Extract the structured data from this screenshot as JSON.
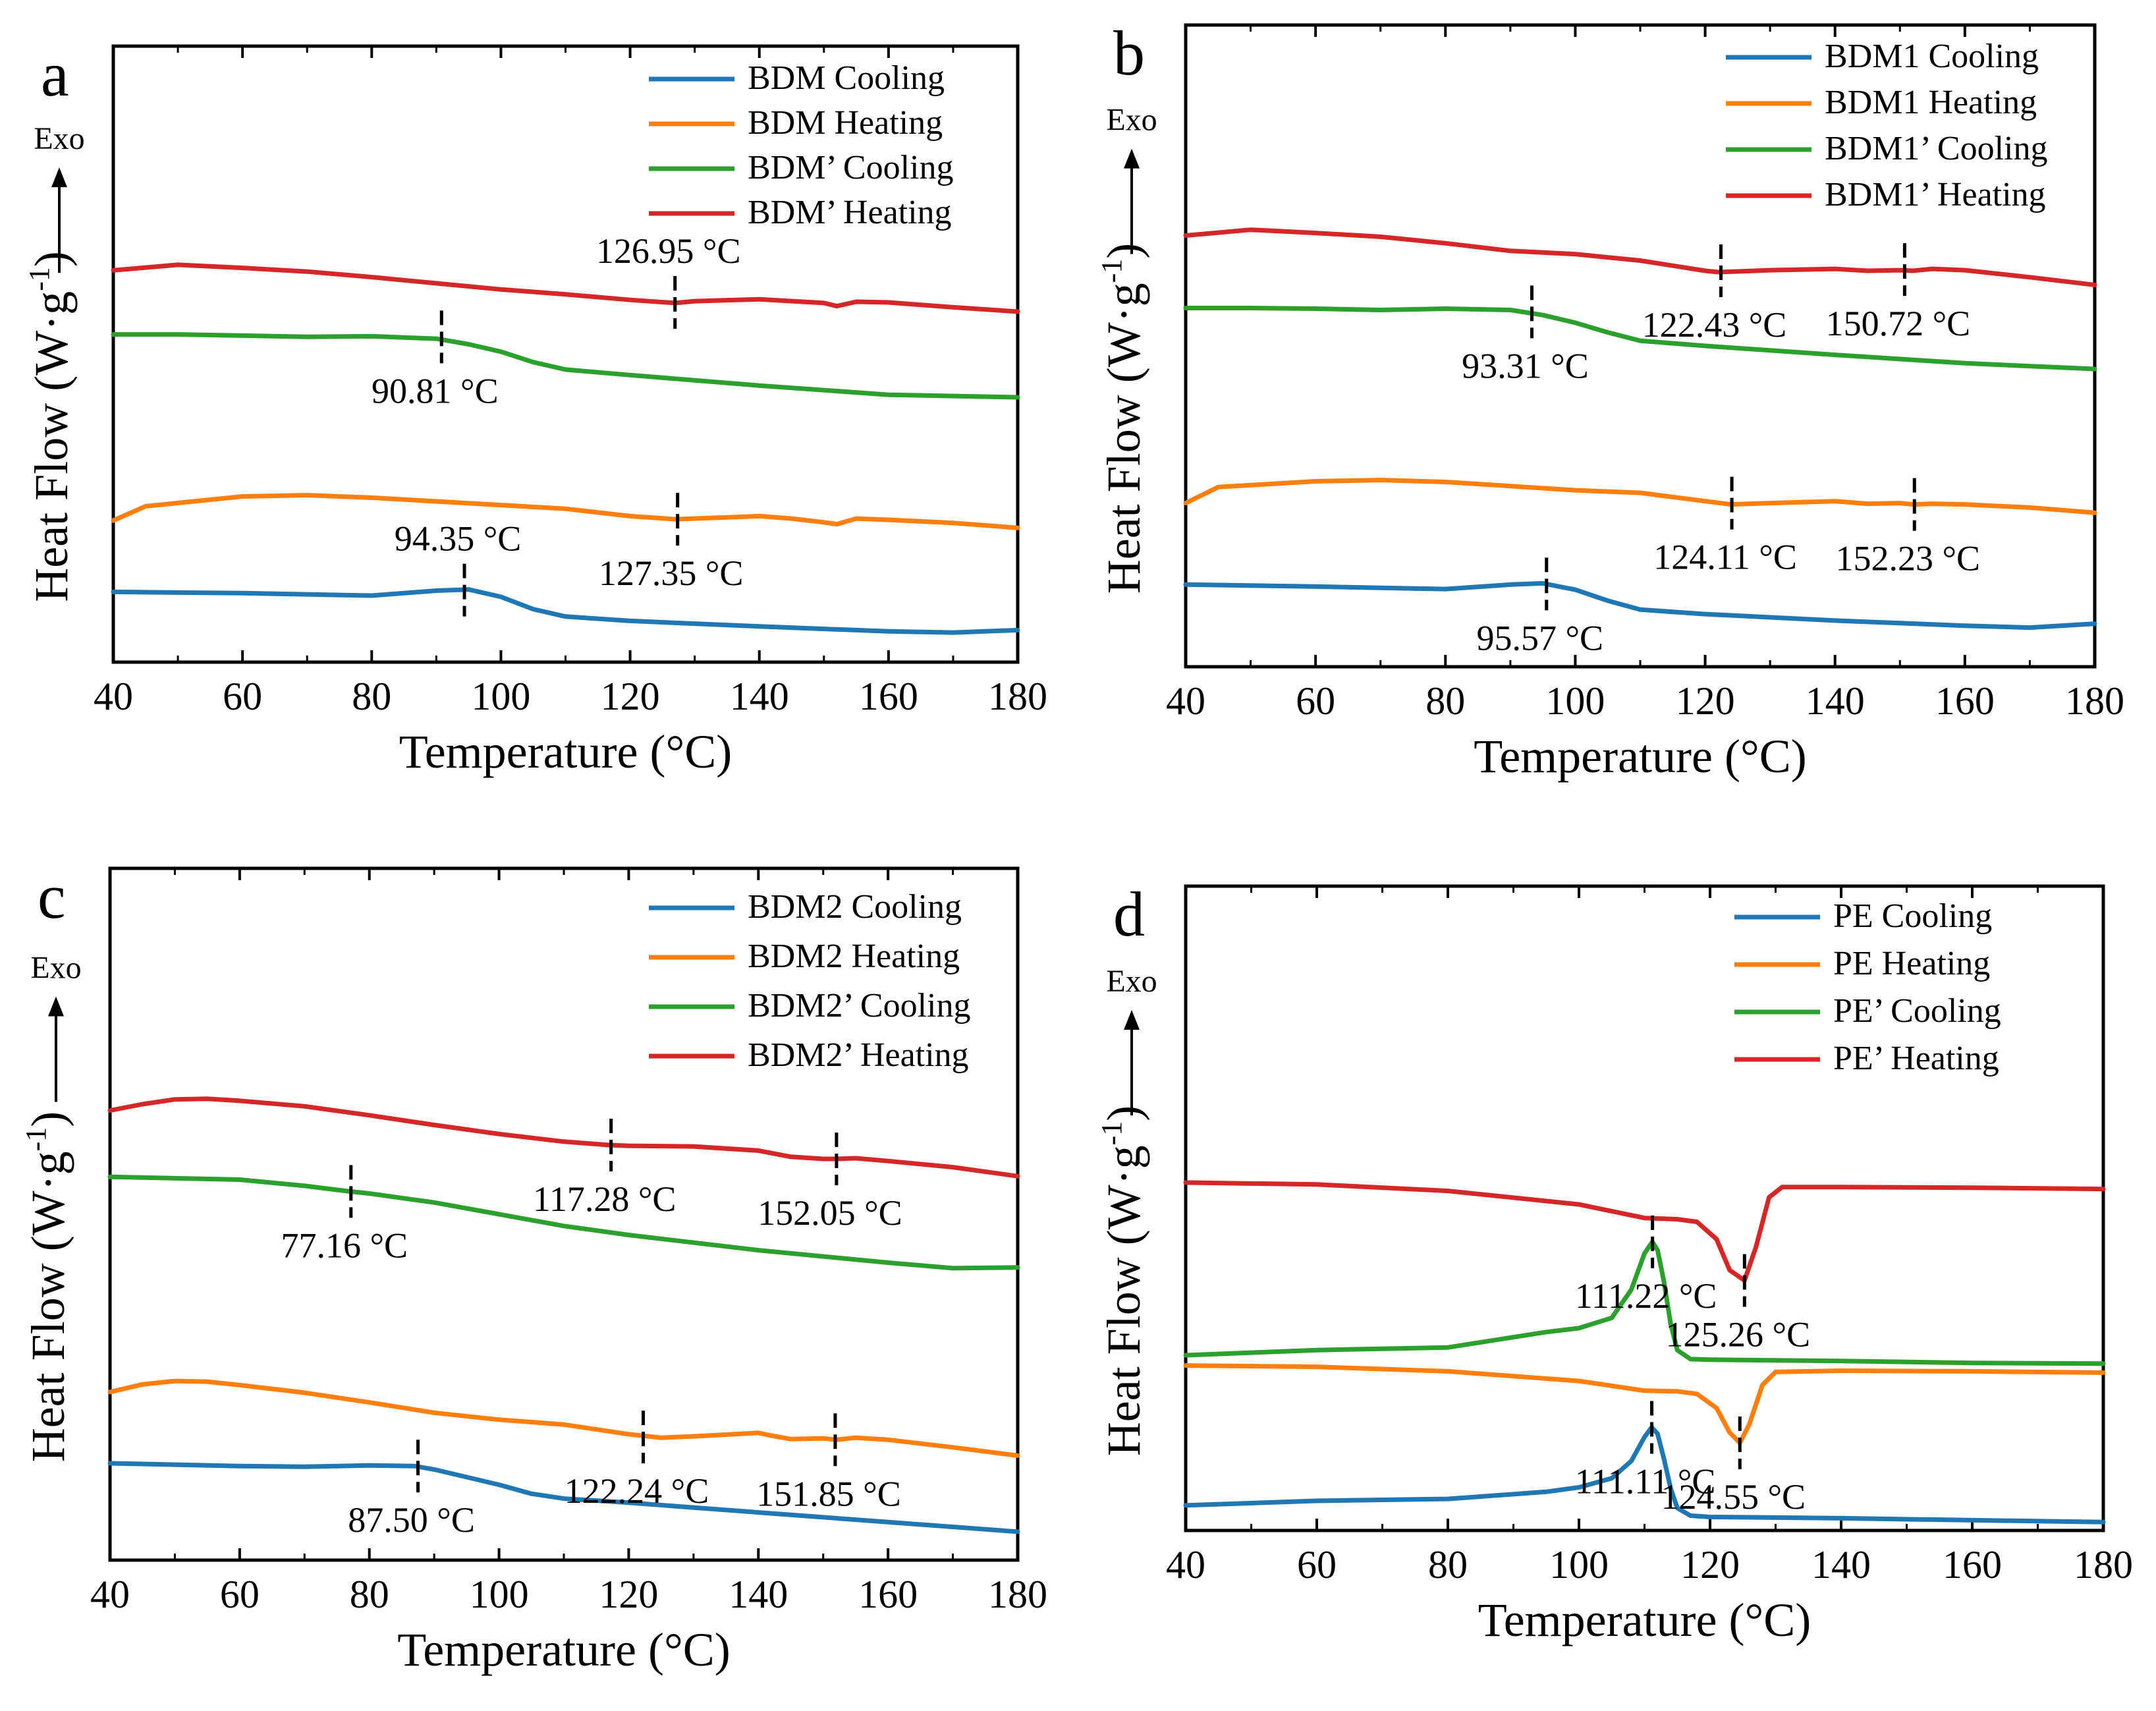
{
  "chart_data": [
    {
      "type": "line",
      "panel_label": "a",
      "xlabel": "Temperature (°C)",
      "ylabel": "Heat Flow (W·g",
      "ylabel_sup": "-1",
      "ylabel_close": ")",
      "exo_label": "Exo",
      "xlim": [
        40,
        180
      ],
      "xticks": [
        "40",
        "60",
        "80",
        "100",
        "120",
        "140",
        "160",
        "180"
      ],
      "yrange": [
        0,
        100
      ],
      "legend_position": "top-right",
      "series": [
        {
          "name": "BDM Cooling",
          "color": "#1f77b4",
          "x": [
            40,
            60,
            80,
            90,
            95,
            100,
            105,
            110,
            120,
            140,
            160,
            170,
            180
          ],
          "y": [
            11.4,
            11.2,
            10.8,
            11.6,
            11.8,
            10.6,
            8.6,
            7.4,
            6.7,
            5.8,
            5.0,
            4.8,
            5.2
          ]
        },
        {
          "name": "BDM Heating",
          "color": "#ff7f0e",
          "x": [
            40,
            45,
            60,
            70,
            80,
            100,
            110,
            120,
            127,
            135,
            140,
            145,
            150,
            152,
            155,
            160,
            170,
            180
          ],
          "y": [
            23.0,
            25.3,
            26.9,
            27.1,
            26.7,
            25.5,
            24.9,
            23.7,
            23.2,
            23.5,
            23.7,
            23.3,
            22.7,
            22.4,
            23.3,
            23.1,
            22.6,
            21.8
          ]
        },
        {
          "name": "BDM’ Cooling",
          "color": "#2ca02c",
          "x": [
            40,
            50,
            60,
            70,
            80,
            90,
            95,
            100,
            105,
            110,
            120,
            140,
            160,
            180
          ],
          "y": [
            53.2,
            53.2,
            53.0,
            52.8,
            52.9,
            52.5,
            51.6,
            50.4,
            48.7,
            47.5,
            46.6,
            44.9,
            43.4,
            43.0
          ]
        },
        {
          "name": "BDM’ Heating",
          "color": "#d62728",
          "x": [
            40,
            50,
            60,
            70,
            80,
            90,
            100,
            110,
            120,
            127,
            130,
            140,
            150,
            152,
            155,
            160,
            170,
            180
          ],
          "y": [
            63.6,
            64.5,
            64.0,
            63.4,
            62.5,
            61.5,
            60.5,
            59.7,
            58.8,
            58.3,
            58.6,
            58.9,
            58.3,
            57.8,
            58.5,
            58.4,
            57.6,
            56.9
          ]
        }
      ],
      "annotations": [
        {
          "text": "90.81 °C",
          "x": 90.81,
          "y": 52.8
        },
        {
          "text": "126.95 °C",
          "x": 126.95,
          "y": 58.4
        },
        {
          "text": "127.35 °C",
          "x": 127.35,
          "y": 23.2
        },
        {
          "text": "94.35 °C",
          "x": 94.35,
          "y": 11.7
        }
      ]
    },
    {
      "type": "line",
      "panel_label": "b",
      "xlabel": "Temperature (°C)",
      "ylabel": "Heat Flow (W·g",
      "ylabel_sup": "-1",
      "ylabel_close": ")",
      "exo_label": "Exo",
      "xlim": [
        40,
        180
      ],
      "xticks": [
        "40",
        "60",
        "80",
        "100",
        "120",
        "140",
        "160",
        "180"
      ],
      "yrange": [
        0,
        100
      ],
      "legend_position": "top-right",
      "series": [
        {
          "name": "BDM1 Cooling",
          "color": "#1f77b4",
          "x": [
            40,
            60,
            80,
            90,
            95,
            100,
            105,
            110,
            120,
            140,
            160,
            170,
            180
          ],
          "y": [
            12.8,
            12.5,
            12.1,
            12.8,
            13.0,
            12.0,
            10.3,
            8.9,
            8.2,
            7.2,
            6.4,
            6.1,
            6.7
          ]
        },
        {
          "name": "BDM1 Heating",
          "color": "#ff7f0e",
          "x": [
            40,
            45,
            60,
            70,
            80,
            100,
            110,
            120,
            124,
            130,
            140,
            145,
            150,
            152,
            155,
            160,
            170,
            180
          ],
          "y": [
            25.5,
            28.0,
            28.9,
            29.1,
            28.8,
            27.5,
            27.1,
            25.8,
            25.3,
            25.5,
            25.8,
            25.4,
            25.5,
            25.3,
            25.4,
            25.3,
            24.8,
            24.0
          ]
        },
        {
          "name": "BDM1’ Cooling",
          "color": "#2ca02c",
          "x": [
            40,
            50,
            60,
            70,
            80,
            90,
            95,
            100,
            105,
            110,
            120,
            140,
            160,
            180
          ],
          "y": [
            55.9,
            55.9,
            55.8,
            55.6,
            55.8,
            55.6,
            54.8,
            53.6,
            52.1,
            50.8,
            50.0,
            48.6,
            47.3,
            46.4
          ]
        },
        {
          "name": "BDM1’ Heating",
          "color": "#d62728",
          "x": [
            40,
            50,
            60,
            70,
            80,
            90,
            100,
            110,
            120,
            122,
            125,
            130,
            140,
            145,
            150,
            152,
            155,
            160,
            170,
            180
          ],
          "y": [
            67.2,
            68.1,
            67.6,
            67.0,
            66.0,
            64.8,
            64.3,
            63.3,
            61.7,
            61.5,
            61.6,
            61.8,
            62.0,
            61.7,
            61.8,
            61.7,
            62.0,
            61.8,
            60.7,
            59.5
          ]
        }
      ],
      "annotations": [
        {
          "text": "122.43 °C",
          "x": 122.43,
          "y": 61.7
        },
        {
          "text": "150.72 °C",
          "x": 150.72,
          "y": 61.9
        },
        {
          "text": "93.31 °C",
          "x": 93.31,
          "y": 55.3
        },
        {
          "text": "124.11 °C",
          "x": 124.11,
          "y": 25.5
        },
        {
          "text": "152.23 °C",
          "x": 152.23,
          "y": 25.3
        },
        {
          "text": "95.57 °C",
          "x": 95.57,
          "y": 12.9
        }
      ]
    },
    {
      "type": "line",
      "panel_label": "c",
      "xlabel": "Temperature (°C)",
      "ylabel": "Heat Flow (W·g",
      "ylabel_sup": "-1",
      "ylabel_close": ")",
      "exo_label": "Exo",
      "xlim": [
        40,
        180
      ],
      "xticks": [
        "40",
        "60",
        "80",
        "100",
        "120",
        "140",
        "160",
        "180"
      ],
      "yrange": [
        0,
        100
      ],
      "legend_position": "top-right",
      "series": [
        {
          "name": "BDM2 Cooling",
          "color": "#1f77b4",
          "x": [
            40,
            60,
            70,
            80,
            87,
            90,
            95,
            100,
            105,
            110,
            120,
            140,
            160,
            180
          ],
          "y": [
            14.0,
            13.6,
            13.5,
            13.7,
            13.6,
            13.1,
            12.0,
            10.9,
            9.6,
            8.9,
            8.3,
            6.9,
            5.5,
            4.1
          ]
        },
        {
          "name": "BDM2 Heating",
          "color": "#ff7f0e",
          "x": [
            40,
            45,
            50,
            55,
            60,
            70,
            80,
            90,
            100,
            110,
            120,
            125,
            130,
            140,
            142,
            145,
            150,
            152,
            155,
            160,
            170,
            180
          ],
          "y": [
            24.3,
            25.4,
            25.9,
            25.8,
            25.3,
            24.2,
            22.8,
            21.3,
            20.3,
            19.6,
            18.2,
            17.7,
            17.9,
            18.4,
            18.0,
            17.5,
            17.6,
            17.4,
            17.7,
            17.4,
            16.3,
            15.1
          ]
        },
        {
          "name": "BDM2’ Cooling",
          "color": "#2ca02c",
          "x": [
            40,
            50,
            60,
            70,
            77,
            80,
            90,
            100,
            110,
            120,
            140,
            160,
            170,
            180
          ],
          "y": [
            55.4,
            55.2,
            55.0,
            54.1,
            53.3,
            53.0,
            51.7,
            50.0,
            48.3,
            47.0,
            44.8,
            43.0,
            42.2,
            42.3
          ]
        },
        {
          "name": "BDM2’ Heating",
          "color": "#d62728",
          "x": [
            40,
            45,
            50,
            55,
            60,
            70,
            80,
            90,
            100,
            110,
            117,
            120,
            130,
            140,
            145,
            150,
            152,
            155,
            160,
            170,
            180
          ],
          "y": [
            65.0,
            65.9,
            66.6,
            66.7,
            66.4,
            65.6,
            64.3,
            62.9,
            61.6,
            60.5,
            60.0,
            59.9,
            59.8,
            59.2,
            58.3,
            58.0,
            58.0,
            58.1,
            57.7,
            56.8,
            55.5
          ]
        }
      ],
      "annotations": [
        {
          "text": "117.28 °C",
          "x": 117.28,
          "y": 60.0
        },
        {
          "text": "152.05 °C",
          "x": 152.05,
          "y": 58.0
        },
        {
          "text": "77.16 °C",
          "x": 77.16,
          "y": 53.3
        },
        {
          "text": "122.24 °C",
          "x": 122.24,
          "y": 17.8
        },
        {
          "text": "151.85 °C",
          "x": 151.85,
          "y": 17.4
        },
        {
          "text": "87.50 °C",
          "x": 87.5,
          "y": 13.6
        }
      ]
    },
    {
      "type": "line",
      "panel_label": "d",
      "xlabel": "Temperature (°C)",
      "ylabel": "Heat Flow (W·g",
      "ylabel_sup": "-1",
      "ylabel_close": ")",
      "exo_label": "Exo",
      "xlim": [
        40,
        180
      ],
      "xticks": [
        "40",
        "60",
        "80",
        "100",
        "120",
        "140",
        "160",
        "180"
      ],
      "yrange": [
        0,
        100
      ],
      "legend_position": "top-right",
      "series": [
        {
          "name": "PE Cooling",
          "color": "#1f77b4",
          "x": [
            40,
            60,
            80,
            95,
            100,
            105,
            108,
            110,
            111.1,
            112,
            113,
            114,
            115,
            117,
            120,
            140,
            160,
            180
          ],
          "y": [
            3.9,
            4.6,
            4.9,
            6.0,
            6.7,
            8.1,
            10.8,
            14.5,
            16.0,
            15.0,
            11.0,
            6.5,
            3.5,
            2.3,
            2.1,
            1.9,
            1.6,
            1.3
          ]
        },
        {
          "name": "PE Heating",
          "color": "#ff7f0e",
          "x": [
            40,
            60,
            80,
            100,
            110,
            115,
            118,
            121,
            123,
            124.55,
            126,
            128,
            130,
            140,
            160,
            180
          ],
          "y": [
            25.6,
            25.4,
            24.7,
            23.2,
            21.7,
            21.6,
            21.2,
            19.0,
            15.2,
            13.6,
            16.5,
            22.6,
            24.6,
            24.8,
            24.7,
            24.5
          ]
        },
        {
          "name": "PE’ Cooling",
          "color": "#2ca02c",
          "x": [
            40,
            60,
            80,
            95,
            100,
            105,
            108,
            110,
            111.2,
            112,
            113,
            114,
            115,
            117,
            120,
            140,
            160,
            180
          ],
          "y": [
            27.2,
            28.0,
            28.4,
            30.8,
            31.4,
            33.0,
            37.4,
            43.0,
            44.8,
            43.5,
            38.5,
            32.0,
            28.0,
            26.6,
            26.5,
            26.3,
            26.0,
            25.9
          ]
        },
        {
          "name": "PE’ Heating",
          "color": "#d62728",
          "x": [
            40,
            60,
            80,
            100,
            110,
            115,
            118,
            121,
            123,
            125.26,
            127,
            129,
            131,
            140,
            160,
            180
          ],
          "y": [
            54.0,
            53.7,
            52.7,
            50.6,
            48.5,
            48.3,
            47.9,
            45.2,
            40.4,
            38.8,
            44.0,
            51.7,
            53.3,
            53.3,
            53.2,
            53.0
          ]
        }
      ],
      "annotations": [
        {
          "text": "111.22 °C",
          "x": 111.22,
          "y": 44.8
        },
        {
          "text": "125.26 °C",
          "x": 125.26,
          "y": 38.8
        },
        {
          "text": "111.11 °C",
          "x": 111.11,
          "y": 16.0
        },
        {
          "text": "124.55 °C",
          "x": 124.55,
          "y": 13.6
        }
      ]
    }
  ]
}
